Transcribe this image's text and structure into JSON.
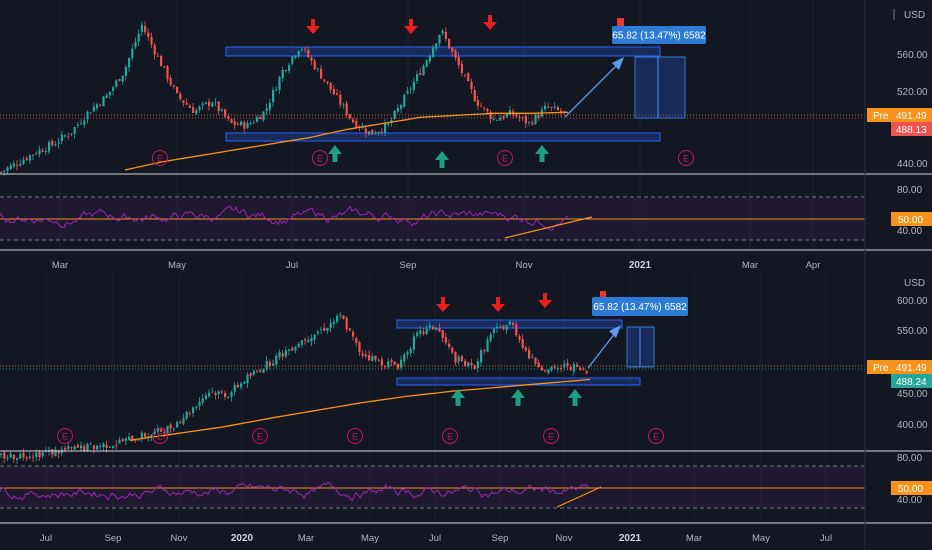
{
  "currency_label": "USD",
  "pre_label": "Pre",
  "colors": {
    "background": "#131722",
    "up": "#26a69a",
    "down": "#ef5350",
    "ma": "#f7931a",
    "rsi": "#9c27b0",
    "zone": "#2962ff",
    "arrow_down": "#e91e1e",
    "arrow_up": "#1e9e86",
    "pre_badge": "#f7931a",
    "annotation": "#2e7bd6"
  },
  "panels": [
    {
      "id": "top",
      "price_axis": {
        "ticks": [
          "560.00",
          "520.00",
          "440.00"
        ]
      },
      "current_price": "491.49",
      "last_price": "488.13",
      "last_price_color": "#ef5350",
      "annotation": "65.82 (13.47%) 6582",
      "earnings_marker": "E",
      "rsi_axis": {
        "ticks": [
          "80.00",
          "40.00"
        ],
        "level": "50.00"
      },
      "time_axis": [
        "Mar",
        "May",
        "Jul",
        "Sep",
        "Nov",
        "2021",
        "Mar",
        "Apr"
      ]
    },
    {
      "id": "bottom",
      "price_axis": {
        "ticks": [
          "600.00",
          "550.00",
          "450.00",
          "400.00"
        ]
      },
      "current_price": "491.49",
      "last_price": "488.24",
      "last_price_color": "#26a69a",
      "annotation": "65.82 (13.47%) 6582",
      "earnings_marker": "E",
      "rsi_axis": {
        "ticks": [
          "80.00",
          "40.00"
        ],
        "level": "50.00"
      },
      "time_axis": [
        "Jul",
        "Sep",
        "Nov",
        "2020",
        "Mar",
        "May",
        "Jul",
        "Sep",
        "Nov",
        "2021",
        "Mar",
        "May",
        "Jul"
      ]
    }
  ],
  "chart_data": [
    {
      "type": "candlestick",
      "panel": "top",
      "y_ticks": [
        440,
        520,
        560
      ],
      "ylim": [
        430,
        590
      ],
      "x_ticks": [
        "Mar",
        "May",
        "Jul",
        "Sep",
        "Nov",
        "2021",
        "Mar",
        "Apr"
      ],
      "last_price": 488.13,
      "pre_market_price": 491.49,
      "resistance_level": 560,
      "support_level": 468,
      "measured_move": {
        "change": 65.82,
        "percent": 13.47,
        "ticks": 6582
      },
      "rsi": {
        "ylim": [
          20,
          100
        ],
        "ticks": [
          40,
          80
        ],
        "level": 50,
        "band": [
          30,
          70
        ]
      },
      "series": [
        {
          "name": "",
          "type": "candlestick",
          "approx_close_path": [
            430,
            440,
            450,
            458,
            470,
            490,
            505,
            530,
            575,
            540,
            505,
            490,
            500,
            478,
            476,
            490,
            530,
            555,
            530,
            505,
            480,
            468,
            476,
            505,
            535,
            570,
            535,
            500,
            482,
            488,
            478,
            494,
            488
          ]
        },
        {
          "name": "",
          "type": "moving-average",
          "approx_path": [
            432,
            440,
            446,
            452,
            458,
            464,
            472,
            478,
            484,
            486,
            488,
            488,
            489
          ]
        }
      ]
    },
    {
      "type": "candlestick",
      "panel": "bottom",
      "y_ticks": [
        400,
        450,
        550,
        600
      ],
      "ylim": [
        370,
        615
      ],
      "x_ticks": [
        "Jul",
        "Sep",
        "Nov",
        "2020",
        "Mar",
        "May",
        "Jul",
        "Sep",
        "Nov",
        "2021",
        "Mar",
        "May",
        "Jul"
      ],
      "last_price": 488.24,
      "pre_market_price": 491.49,
      "resistance_level": 563,
      "support_level": 475,
      "measured_move": {
        "change": 65.82,
        "percent": 13.47,
        "ticks": 6582
      },
      "rsi": {
        "ylim": [
          20,
          100
        ],
        "ticks": [
          40,
          80
        ],
        "level": 50,
        "band": [
          30,
          70
        ]
      },
      "series": [
        {
          "name": "",
          "type": "candlestick",
          "approx_close_path": [
            360,
            362,
            365,
            368,
            372,
            376,
            380,
            388,
            395,
            405,
            430,
            460,
            455,
            480,
            500,
            520,
            540,
            555,
            575,
            520,
            505,
            500,
            545,
            560,
            510,
            495,
            550,
            565,
            510,
            490,
            500,
            488
          ]
        },
        {
          "name": "",
          "type": "moving-average",
          "approx_path": [
            385,
            395,
            405,
            418,
            430,
            442,
            452,
            460,
            466,
            472,
            478
          ]
        }
      ]
    }
  ]
}
